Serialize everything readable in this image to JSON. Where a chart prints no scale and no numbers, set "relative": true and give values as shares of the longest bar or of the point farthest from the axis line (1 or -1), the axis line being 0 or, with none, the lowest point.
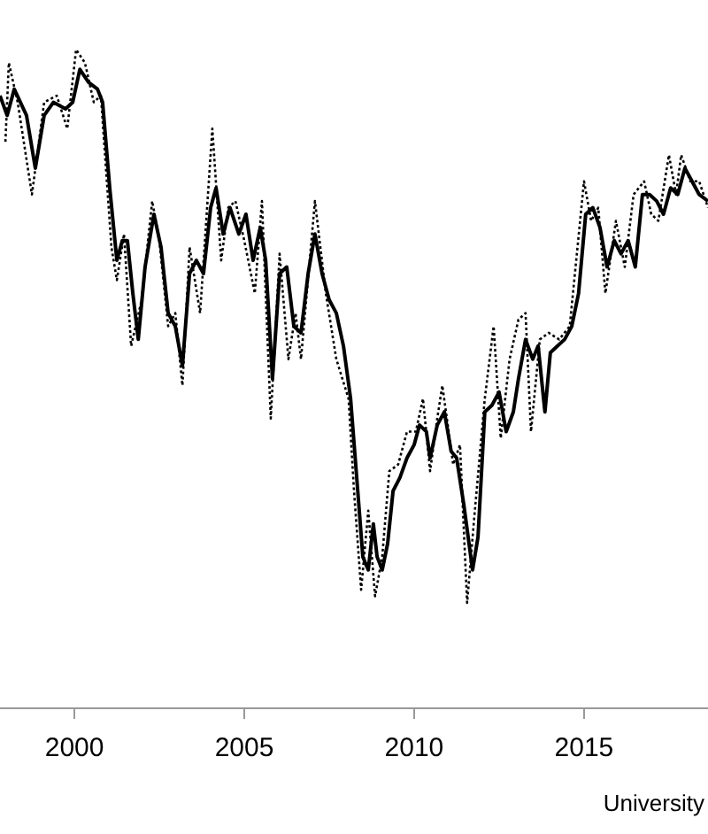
{
  "chart_data": {
    "type": "line",
    "relative": true,
    "xlim": [
      1997.81,
      2018.65
    ],
    "xticks": [
      2000,
      2005,
      2010,
      2015
    ],
    "grid": false,
    "legend": false,
    "marker": "none",
    "annotations": [
      "University"
    ],
    "series": [
      {
        "color": "#000000",
        "line_style": "solid",
        "x": [
          1997.81,
          1998.02,
          1998.23,
          1998.59,
          1998.85,
          1999.11,
          1999.38,
          1999.74,
          1999.95,
          2000.16,
          2000.42,
          2000.68,
          2000.83,
          2001.04,
          2001.25,
          2001.41,
          2001.56,
          2001.72,
          2001.88,
          2002.08,
          2002.34,
          2002.55,
          2002.76,
          2002.97,
          2003.18,
          2003.39,
          2003.59,
          2003.8,
          2004.01,
          2004.17,
          2004.38,
          2004.58,
          2004.84,
          2005.05,
          2005.26,
          2005.47,
          2005.63,
          2005.83,
          2006.04,
          2006.25,
          2006.46,
          2006.67,
          2006.88,
          2007.08,
          2007.29,
          2007.5,
          2007.71,
          2007.92,
          2008.13,
          2008.28,
          2008.49,
          2008.65,
          2008.8,
          2008.91,
          2009.06,
          2009.22,
          2009.38,
          2009.58,
          2009.79,
          2010.0,
          2010.16,
          2010.36,
          2010.47,
          2010.68,
          2010.89,
          2011.09,
          2011.25,
          2011.46,
          2011.72,
          2011.88,
          2012.08,
          2012.29,
          2012.5,
          2012.71,
          2012.92,
          2013.07,
          2013.28,
          2013.49,
          2013.65,
          2013.85,
          2014.01,
          2014.22,
          2014.43,
          2014.64,
          2014.84,
          2015.05,
          2015.26,
          2015.47,
          2015.68,
          2015.89,
          2016.09,
          2016.3,
          2016.51,
          2016.72,
          2016.93,
          2017.14,
          2017.34,
          2017.55,
          2017.76,
          2017.97,
          2018.18,
          2018.39,
          2018.65
        ],
        "values": [
          0.93,
          0.9,
          0.94,
          0.9,
          0.82,
          0.9,
          0.92,
          0.91,
          0.92,
          0.97,
          0.95,
          0.94,
          0.92,
          0.79,
          0.68,
          0.71,
          0.71,
          0.63,
          0.56,
          0.67,
          0.75,
          0.7,
          0.6,
          0.58,
          0.52,
          0.66,
          0.68,
          0.66,
          0.76,
          0.79,
          0.72,
          0.76,
          0.72,
          0.75,
          0.68,
          0.73,
          0.68,
          0.5,
          0.66,
          0.67,
          0.58,
          0.57,
          0.66,
          0.72,
          0.66,
          0.62,
          0.6,
          0.55,
          0.47,
          0.37,
          0.23,
          0.21,
          0.28,
          0.23,
          0.21,
          0.25,
          0.33,
          0.35,
          0.38,
          0.4,
          0.43,
          0.42,
          0.38,
          0.43,
          0.45,
          0.39,
          0.38,
          0.31,
          0.21,
          0.26,
          0.45,
          0.46,
          0.48,
          0.42,
          0.45,
          0.5,
          0.56,
          0.53,
          0.55,
          0.45,
          0.54,
          0.55,
          0.56,
          0.58,
          0.63,
          0.75,
          0.76,
          0.73,
          0.67,
          0.71,
          0.69,
          0.71,
          0.67,
          0.78,
          0.78,
          0.77,
          0.75,
          0.79,
          0.78,
          0.82,
          0.8,
          0.78,
          0.77
        ]
      },
      {
        "color": "#000000",
        "line_style": "dotted",
        "x": [
          1997.97,
          1998.07,
          1998.33,
          1998.75,
          1999.11,
          1999.48,
          1999.79,
          2000.05,
          2000.31,
          2000.57,
          2000.78,
          2001.09,
          2001.25,
          2001.46,
          2001.67,
          2001.98,
          2002.29,
          2002.5,
          2002.76,
          2002.97,
          2003.18,
          2003.39,
          2003.7,
          2004.06,
          2004.32,
          2004.53,
          2004.74,
          2005.0,
          2005.31,
          2005.52,
          2005.78,
          2006.04,
          2006.3,
          2006.51,
          2006.67,
          2007.08,
          2007.4,
          2007.71,
          2008.07,
          2008.23,
          2008.44,
          2008.65,
          2008.85,
          2009.06,
          2009.27,
          2009.53,
          2009.79,
          2010.05,
          2010.26,
          2010.47,
          2010.68,
          2010.83,
          2011.15,
          2011.35,
          2011.56,
          2011.77,
          2012.08,
          2012.34,
          2012.55,
          2012.81,
          2013.07,
          2013.28,
          2013.44,
          2013.7,
          2013.96,
          2014.27,
          2014.58,
          2015.0,
          2015.21,
          2015.42,
          2015.63,
          2015.94,
          2016.2,
          2016.46,
          2016.77,
          2016.98,
          2017.19,
          2017.5,
          2017.71,
          2017.86,
          2018.13,
          2018.39,
          2018.65
        ],
        "values": [
          0.86,
          0.98,
          0.92,
          0.78,
          0.92,
          0.93,
          0.88,
          1,
          0.98,
          0.92,
          0.93,
          0.7,
          0.65,
          0.72,
          0.55,
          0.62,
          0.77,
          0.71,
          0.58,
          0.6,
          0.49,
          0.7,
          0.6,
          0.88,
          0.68,
          0.76,
          0.77,
          0.71,
          0.63,
          0.77,
          0.44,
          0.69,
          0.53,
          0.6,
          0.53,
          0.77,
          0.63,
          0.53,
          0.47,
          0.33,
          0.18,
          0.3,
          0.17,
          0.23,
          0.36,
          0.37,
          0.42,
          0.42,
          0.47,
          0.36,
          0.44,
          0.49,
          0.37,
          0.4,
          0.16,
          0.29,
          0.47,
          0.58,
          0.41,
          0.53,
          0.59,
          0.6,
          0.42,
          0.56,
          0.57,
          0.56,
          0.58,
          0.8,
          0.74,
          0.76,
          0.63,
          0.74,
          0.67,
          0.78,
          0.8,
          0.75,
          0.74,
          0.84,
          0.78,
          0.84,
          0.8,
          0.8,
          0.76
        ]
      }
    ]
  }
}
